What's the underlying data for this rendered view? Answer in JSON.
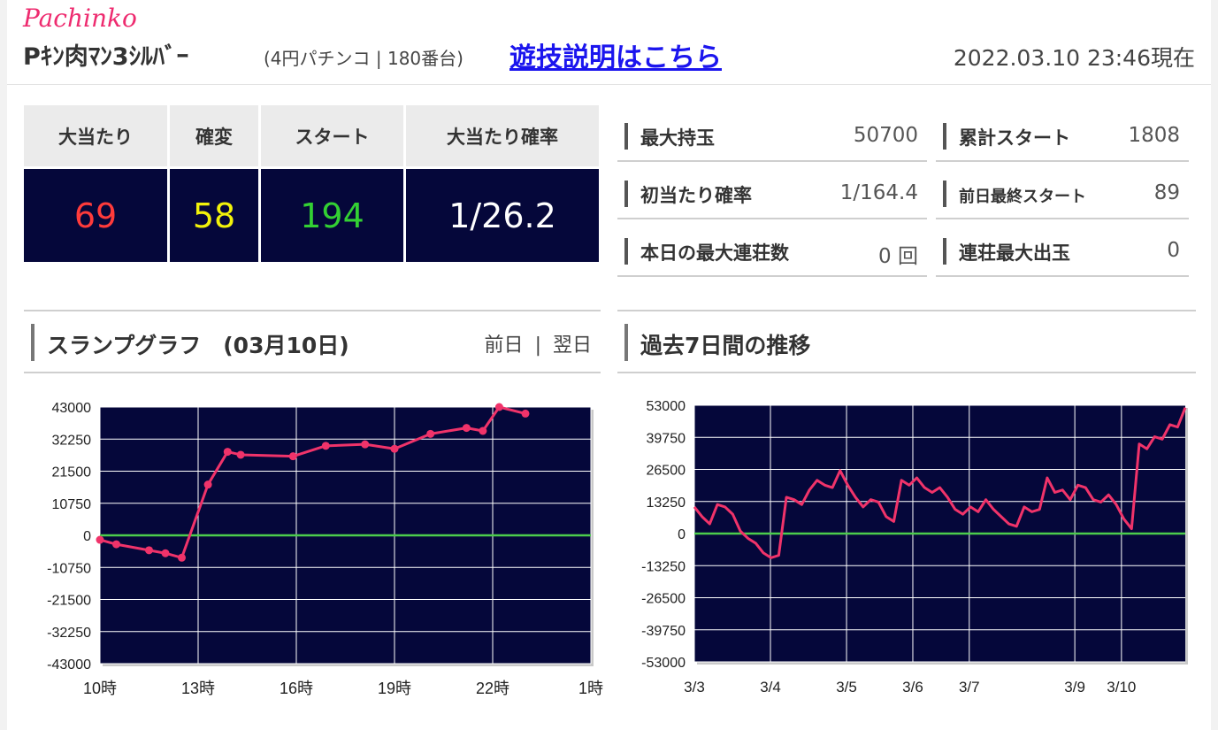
{
  "header": {
    "brand": "Pachinko",
    "machine_name": "Pｷﾝ肉ﾏﾝ3ｼﾙﾊﾞｰ",
    "machine_type": "(4円パチンコ | 180番台)",
    "explain_link": "遊技説明はこちら",
    "timestamp": "2022.03.10 23:46現在"
  },
  "stats": {
    "headers": [
      "大当たり",
      "確変",
      "スタート",
      "大当たり確率"
    ],
    "values": [
      "69",
      "58",
      "194",
      "1/26.2"
    ],
    "colors": [
      "#ff3b3b",
      "#f2f20a",
      "#33d033",
      "#ffffff"
    ]
  },
  "info": {
    "max_balls_label": "最大持玉",
    "max_balls": "50700",
    "total_start_label": "累計スタート",
    "total_start": "1808",
    "first_hit_label": "初当たり確率",
    "first_hit": "1/164.4",
    "prev_start_label": "前日最終スタート",
    "prev_start": "89",
    "max_chain_label": "本日の最大連荘数",
    "max_chain": "0 回",
    "chain_max_label": "連荘最大出玉",
    "chain_max": "0"
  },
  "slump": {
    "title": "スランプグラフ　(03月10日)",
    "prev": "前日",
    "sep": "|",
    "next": "翌日"
  },
  "weekly": {
    "title": "過去7日間の推移"
  },
  "colors": {
    "accent": "#ee2b6f",
    "plot_bg": "#05073a",
    "line": "#f0336a",
    "zero": "#4ccd4c"
  },
  "chart_data": [
    {
      "type": "line",
      "ylim": [
        -43000,
        43000
      ],
      "yticks": [
        43000,
        32250,
        21500,
        10750,
        0,
        -10750,
        -21500,
        -32250,
        -43000
      ],
      "xticks": [
        {
          "x": 10,
          "label": "10時"
        },
        {
          "x": 13,
          "label": "13時"
        },
        {
          "x": 16,
          "label": "16時"
        },
        {
          "x": 19,
          "label": "19時"
        },
        {
          "x": 22,
          "label": "22時"
        },
        {
          "x": 25,
          "label": "1時"
        }
      ],
      "xlim": [
        10,
        25
      ],
      "x": [
        10.0,
        10.5,
        11.5,
        12.0,
        12.5,
        13.3,
        13.9,
        14.3,
        15.9,
        16.9,
        18.1,
        19.0,
        20.1,
        21.2,
        21.7,
        22.2,
        23.0
      ],
      "values": [
        -1500,
        -3000,
        -5000,
        -6000,
        -7500,
        17000,
        28000,
        27000,
        26500,
        30000,
        30500,
        29000,
        34000,
        36000,
        35000,
        43000,
        40800
      ]
    },
    {
      "type": "line",
      "ylim": [
        -53000,
        53000
      ],
      "yticks": [
        53000,
        39750,
        26500,
        13250,
        0,
        -13250,
        -26500,
        -39750,
        -53000
      ],
      "xticks": [
        "3/3",
        "3/4",
        "3/5",
        "3/6",
        "3/7",
        "3/9",
        "3/10"
      ],
      "values": [
        11000,
        7000,
        4000,
        12000,
        11000,
        8000,
        1000,
        -2000,
        -4000,
        -8000,
        -10000,
        -9000,
        15000,
        14000,
        12000,
        18000,
        22000,
        20000,
        19000,
        26000,
        20000,
        15000,
        11000,
        14000,
        13000,
        7000,
        5000,
        22000,
        20000,
        23000,
        19000,
        17000,
        19000,
        15000,
        10000,
        8000,
        11000,
        9000,
        14000,
        10000,
        7000,
        4000,
        3000,
        11000,
        9000,
        10000,
        23000,
        17000,
        18000,
        14000,
        20000,
        19000,
        14000,
        13000,
        16000,
        12000,
        6000,
        2000,
        37000,
        35000,
        40000,
        39000,
        45000,
        44000,
        52000
      ]
    }
  ]
}
